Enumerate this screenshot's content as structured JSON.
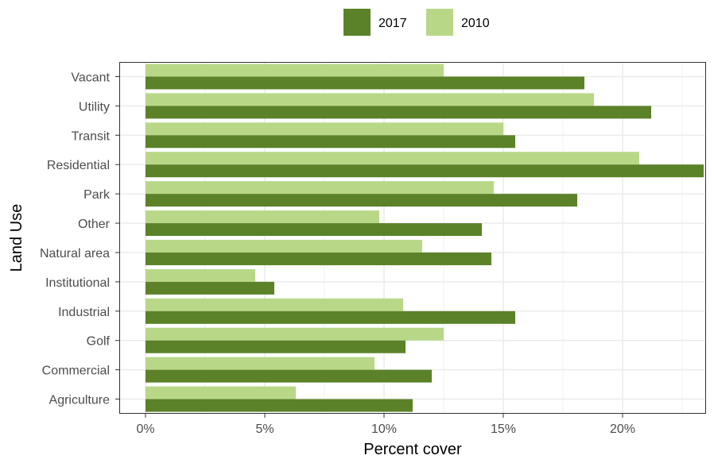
{
  "chart_data": {
    "type": "bar",
    "orientation": "horizontal",
    "xlabel": "Percent cover",
    "ylabel": "Land Use",
    "xlim": [
      -1.1,
      23.5
    ],
    "x_ticks": [
      0,
      5,
      10,
      15,
      20
    ],
    "x_tick_labels": [
      "0%",
      "5%",
      "10%",
      "15%",
      "20%"
    ],
    "grid": true,
    "legend_position": "top",
    "categories": [
      "Vacant",
      "Utility",
      "Transit",
      "Residential",
      "Park",
      "Other",
      "Natural area",
      "Institutional",
      "Industrial",
      "Golf",
      "Commercial",
      "Agriculture"
    ],
    "series": [
      {
        "name": "2017",
        "color": "#5b8228",
        "values": [
          18.4,
          21.2,
          15.5,
          23.4,
          18.1,
          14.1,
          14.5,
          5.4,
          15.5,
          10.9,
          12.0,
          11.2
        ]
      },
      {
        "name": "2010",
        "color": "#b8d888",
        "values": [
          12.5,
          18.8,
          15.0,
          20.7,
          14.6,
          9.8,
          11.6,
          4.6,
          10.8,
          12.5,
          9.6,
          6.3
        ]
      }
    ]
  }
}
